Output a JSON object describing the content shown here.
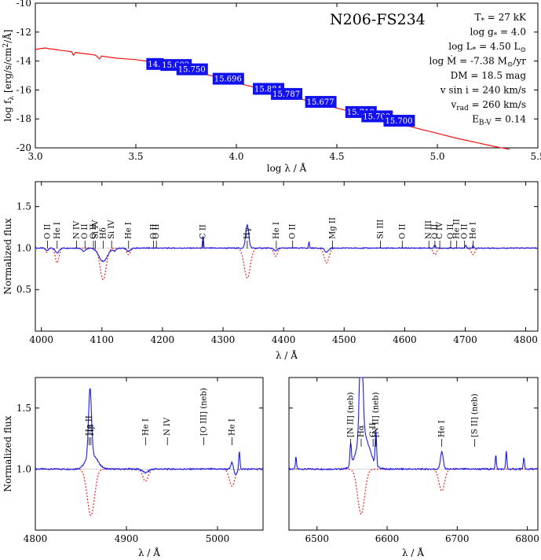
{
  "figure": {
    "object_name": "N206-FS234",
    "parameters": [
      "T<sub>*</sub> = 27 kK",
      "log g<sub>*</sub> = 4.0",
      "log L<sub>*</sub> = 4.50 L<sub>⊙</sub>",
      "log Ṁ = -7.38 M<sub>⊙</sub>/yr",
      "DM = 18.5 mag",
      "v sin i = 240 km/s",
      "v<sub>rad</sub> = 260 km/s",
      "E<sub>B-V</sub> = 0.14"
    ]
  },
  "colors": {
    "observed": "#1a1aee",
    "model": "#ee1111",
    "photometry_box": "#1212ee"
  },
  "chart_data": [
    {
      "id": "sed",
      "type": "line",
      "xlabel": "log λ / Å",
      "ylabel": "log f<sub>λ</sub> [erg/s/cm<sup>2</sup>/Å]",
      "xlim": [
        3.0,
        5.5
      ],
      "ylim": [
        -20,
        -10
      ],
      "xticks": [
        3.0,
        3.5,
        4.0,
        4.5,
        5.0,
        5.5
      ],
      "xtick_labels": [
        "3.0",
        "3.5",
        "4.0",
        "4.5",
        "5.0",
        "5.5"
      ],
      "yticks": [
        -20,
        -18,
        -16,
        -14,
        -12,
        -10
      ],
      "ytick_labels": [
        "-20",
        "-18",
        "-16",
        "-14",
        "-12",
        "-10"
      ],
      "series": [
        {
          "x": [
            3.0,
            3.02,
            3.05,
            3.07,
            3.1,
            3.12,
            3.15,
            3.18,
            3.19,
            3.2,
            3.22,
            3.25,
            3.28,
            3.3,
            3.32,
            3.33,
            3.35,
            3.4,
            3.45,
            3.5,
            3.55,
            3.6,
            3.7,
            3.8,
            3.9,
            4.0,
            4.1,
            4.2,
            4.3,
            4.4,
            4.5,
            4.6,
            4.7,
            4.8,
            4.9,
            5.0,
            5.1,
            5.2,
            5.3,
            5.36
          ],
          "y": [
            -13.2,
            -13.15,
            -13.1,
            -13.15,
            -13.2,
            -13.25,
            -13.3,
            -13.35,
            -13.6,
            -13.4,
            -13.45,
            -13.5,
            -13.55,
            -13.6,
            -13.85,
            -13.65,
            -13.7,
            -13.8,
            -13.85,
            -13.9,
            -14.0,
            -14.1,
            -14.4,
            -14.75,
            -15.1,
            -15.5,
            -15.85,
            -16.2,
            -16.55,
            -16.9,
            -17.25,
            -17.6,
            -17.95,
            -18.3,
            -18.65,
            -19.0,
            -19.35,
            -19.65,
            -19.95,
            -20.1
          ]
        }
      ],
      "photometry": [
        {
          "label": "14.",
          "x": 3.56,
          "y": -14.23
        },
        {
          "label": "15.682",
          "x": 3.63,
          "y": -14.3
        },
        {
          "label": "15.750",
          "x": 3.71,
          "y": -14.6
        },
        {
          "label": "15.696",
          "x": 3.89,
          "y": -15.25
        },
        {
          "label": "15.884",
          "x": 4.09,
          "y": -15.95
        },
        {
          "label": "15.787",
          "x": 4.18,
          "y": -16.3
        },
        {
          "label": "15.677",
          "x": 4.35,
          "y": -16.85
        },
        {
          "label": "15.718",
          "x": 4.55,
          "y": -17.55
        },
        {
          "label": "15.700",
          "x": 4.63,
          "y": -17.85
        },
        {
          "label": "15.700",
          "x": 4.74,
          "y": -18.15
        }
      ]
    },
    {
      "id": "blue-spectrum",
      "type": "line",
      "xlabel": "λ / Å",
      "ylabel": "Normalized flux",
      "xlim": [
        3990,
        4820
      ],
      "ylim": [
        0.0,
        1.8
      ],
      "xticks": [
        4000,
        4100,
        4200,
        4300,
        4400,
        4500,
        4600,
        4700,
        4800
      ],
      "xtick_labels": [
        "4000",
        "4100",
        "4200",
        "4300",
        "4400",
        "4500",
        "4600",
        "4700",
        "4800"
      ],
      "yticks": [
        0.5,
        1.0,
        1.5
      ],
      "ytick_labels": [
        "0.5",
        "1.0",
        "1.5"
      ],
      "continuum": 1.0,
      "observed_lines": [
        {
          "c": 4009,
          "d": -0.03,
          "w": 2
        },
        {
          "c": 4026,
          "d": -0.06,
          "w": 3
        },
        {
          "c": 4070,
          "d": -0.04,
          "w": 3
        },
        {
          "c": 4102,
          "d": -0.16,
          "w": 7
        },
        {
          "c": 4121,
          "d": -0.03,
          "w": 3
        },
        {
          "c": 4144,
          "d": -0.04,
          "w": 3
        },
        {
          "c": 4267,
          "d": 0.15,
          "w": 0.8
        },
        {
          "c": 4340,
          "d": 0.28,
          "w": 2.5
        },
        {
          "c": 4387,
          "d": -0.03,
          "w": 3
        },
        {
          "c": 4442,
          "d": 0.08,
          "w": 0.8
        },
        {
          "c": 4471,
          "d": -0.05,
          "w": 3
        },
        {
          "c": 4650,
          "d": 0.04,
          "w": 1.2
        },
        {
          "c": 4701,
          "d": 0.04,
          "w": 1.0
        },
        {
          "c": 4713,
          "d": 0.03,
          "w": 1.0
        }
      ],
      "model_lines": [
        {
          "c": 4009,
          "d": -0.05,
          "w": 2
        },
        {
          "c": 4026,
          "d": -0.18,
          "w": 3
        },
        {
          "c": 4102,
          "d": -0.38,
          "w": 5
        },
        {
          "c": 4144,
          "d": -0.08,
          "w": 3
        },
        {
          "c": 4340,
          "d": -0.36,
          "w": 5
        },
        {
          "c": 4387,
          "d": -0.1,
          "w": 3
        },
        {
          "c": 4471,
          "d": -0.18,
          "w": 4
        },
        {
          "c": 4650,
          "d": -0.08,
          "w": 3
        },
        {
          "c": 4713,
          "d": -0.08,
          "w": 3
        }
      ],
      "line_ids": [
        {
          "label": "O II",
          "x": 4010
        },
        {
          "label": "He I",
          "x": 4026
        },
        {
          "label": "N IV",
          "x": 4058
        },
        {
          "label": "O II",
          "x": 4072
        },
        {
          "label": "O II",
          "x": 4086
        },
        {
          "label": "Si IV",
          "x": 4089
        },
        {
          "label": "Hδ",
          "x": 4102
        },
        {
          "label": "Si IV",
          "x": 4116
        },
        {
          "label": "He I",
          "x": 4144
        },
        {
          "label": "O II",
          "x": 4185
        },
        {
          "label": "O II",
          "x": 4190
        },
        {
          "label": "C II",
          "x": 4267
        },
        {
          "label": "Hγ",
          "x": 4340
        },
        {
          "label": "He I",
          "x": 4388
        },
        {
          "label": "O II",
          "x": 4415
        },
        {
          "label": "Mg II",
          "x": 4481
        },
        {
          "label": "Si III",
          "x": 4560
        },
        {
          "label": "O II",
          "x": 4596
        },
        {
          "label": "N III",
          "x": 4640
        },
        {
          "label": "O II",
          "x": 4650
        },
        {
          "label": "C IV",
          "x": 4658
        },
        {
          "label": "O II",
          "x": 4676
        },
        {
          "label": "He II",
          "x": 4686
        },
        {
          "label": "O II",
          "x": 4699
        },
        {
          "label": "He I",
          "x": 4713
        }
      ]
    },
    {
      "id": "hbeta-spectrum",
      "type": "line",
      "xlabel": "λ / Å",
      "ylabel": "Normalized flux",
      "xlim": [
        4800,
        5050
      ],
      "ylim": [
        0.5,
        1.75
      ],
      "xticks": [
        4800,
        4900,
        5000
      ],
      "xtick_labels": [
        "4800",
        "4900",
        "5000"
      ],
      "yticks": [
        1.0,
        1.5
      ],
      "ytick_labels": [
        "1.0",
        "1.5"
      ],
      "continuum": 1.0,
      "observed_lines": [
        {
          "c": 4860,
          "d": 0.55,
          "w": 1.6
        },
        {
          "c": 4862,
          "d": 0.12,
          "w": 6
        },
        {
          "c": 4921,
          "d": -0.03,
          "w": 3
        },
        {
          "c": 5016,
          "d": 0.06,
          "w": 1.2
        },
        {
          "c": 5020,
          "d": -0.04,
          "w": 2
        },
        {
          "c": 5024,
          "d": 0.15,
          "w": 0.7
        }
      ],
      "model_lines": [
        {
          "c": 4861,
          "d": -0.38,
          "w": 4
        },
        {
          "c": 4921,
          "d": -0.1,
          "w": 3
        },
        {
          "c": 5016,
          "d": -0.14,
          "w": 3
        }
      ],
      "line_ids": [
        {
          "label": "He II",
          "x": 4859
        },
        {
          "label": "Hβ",
          "x": 4861
        },
        {
          "label": "He I",
          "x": 4921
        },
        {
          "label": "N IV",
          "x": 4945
        },
        {
          "label": "[O III] (neb)",
          "x": 4985
        },
        {
          "label": "He I",
          "x": 5016
        }
      ]
    },
    {
      "id": "halpha-spectrum",
      "type": "line",
      "xlabel": "λ / Å",
      "ylabel": "",
      "xlim": [
        6460,
        6815
      ],
      "ylim": [
        0.5,
        1.75
      ],
      "xticks": [
        6500,
        6600,
        6700,
        6800
      ],
      "xtick_labels": [
        "6500",
        "6600",
        "6700",
        "6800"
      ],
      "yticks": [
        1.0,
        1.5
      ],
      "ytick_labels": [
        "",
        ""
      ],
      "continuum": 1.0,
      "observed_lines": [
        {
          "c": 6470,
          "d": 0.1,
          "w": 0.8
        },
        {
          "c": 6548,
          "d": 0.18,
          "w": 1.0
        },
        {
          "c": 6563,
          "d": 0.95,
          "w": 2.2
        },
        {
          "c": 6566,
          "d": 0.28,
          "w": 9
        },
        {
          "c": 6584,
          "d": 0.28,
          "w": 1.0
        },
        {
          "c": 6678,
          "d": 0.14,
          "w": 2
        },
        {
          "c": 6755,
          "d": 0.12,
          "w": 0.8
        },
        {
          "c": 6770,
          "d": 0.15,
          "w": 0.8
        },
        {
          "c": 6795,
          "d": 0.1,
          "w": 0.8
        }
      ],
      "model_lines": [
        {
          "c": 6563,
          "d": -0.37,
          "w": 5
        },
        {
          "c": 6678,
          "d": -0.18,
          "w": 4
        }
      ],
      "line_ids": [
        {
          "label": "[N II] (neb)",
          "x": 6548
        },
        {
          "label": "Hα",
          "x": 6563
        },
        {
          "label": "C II",
          "x": 6580
        },
        {
          "label": "[N II] (neb)",
          "x": 6584
        },
        {
          "label": "He I",
          "x": 6678
        },
        {
          "label": "[S II] (neb)",
          "x": 6725
        }
      ]
    }
  ]
}
